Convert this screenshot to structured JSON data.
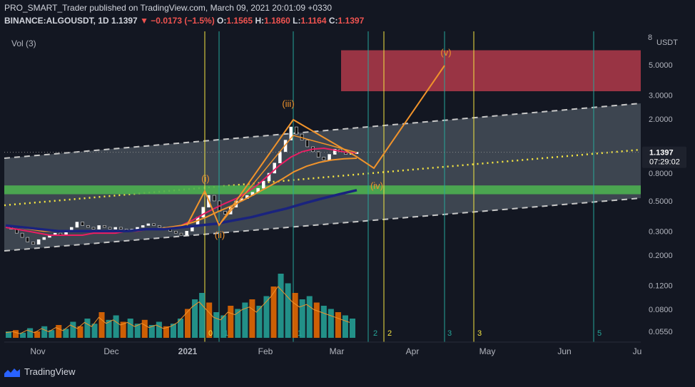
{
  "header": {
    "published_line": "PRO_SMART_Trader published on TradingView.com, March 09, 2021 20:01:09 +0330",
    "symbol_label": "BINANCE:ALGOUSDT, 1D",
    "last_price": "1.1397",
    "change": "−0.0173 (−1.5%)",
    "open_label": "O:",
    "open": "1.1565",
    "high_label": "H:",
    "high": "1.1860",
    "low_label": "L:",
    "low": "1.1164",
    "close_label": "C:",
    "close": "1.1397"
  },
  "indicator_label": "Vol (3)",
  "footer": {
    "brand": "TradingView"
  },
  "colors": {
    "background": "#131722",
    "channel_fill": "#4c5560",
    "green_zone": "#4caf50",
    "red_zone": "#b2394a",
    "wave_orange": "#f0932b",
    "vline_green": "#26a69a",
    "vline_yellow": "#f5e642",
    "price_label_bg": "#1e222d"
  },
  "chart_data": {
    "type": "line",
    "axis_unit": "USDT",
    "y_scale": "log",
    "price_ticks": [
      "5.0000",
      "3.0000",
      "2.0000",
      "0.8000",
      "0.5000",
      "0.3000",
      "0.2000",
      "0.1200",
      "0.0800",
      "0.0550"
    ],
    "price_tick_values": [
      5.0,
      3.0,
      2.0,
      0.8,
      0.5,
      0.3,
      0.2,
      0.12,
      0.08,
      0.055
    ],
    "partial_top_tick": "8",
    "last_price_label": "1.1397",
    "countdown_label": "07:29:02",
    "x_labels": [
      "Nov",
      "Dec",
      "2021",
      "Feb",
      "Mar",
      "Apr",
      "May",
      "Jun",
      "Ju"
    ],
    "wave_labels": [
      "(i)",
      "(ii)",
      "(iii)",
      "(iv)",
      "(v)"
    ],
    "cycle_labels": [
      {
        "text": "0",
        "color": "yellow"
      },
      {
        "text": "1",
        "color": "green"
      },
      {
        "text": "1",
        "color": "green"
      },
      {
        "text": "2",
        "color": "green"
      },
      {
        "text": "2",
        "color": "yellow"
      },
      {
        "text": "3",
        "color": "green"
      },
      {
        "text": "3",
        "color": "yellow"
      },
      {
        "text": "5",
        "color": "green"
      }
    ],
    "price_path": [
      0.33,
      0.31,
      0.29,
      0.27,
      0.25,
      0.24,
      0.26,
      0.27,
      0.28,
      0.29,
      0.28,
      0.3,
      0.32,
      0.35,
      0.33,
      0.32,
      0.31,
      0.33,
      0.32,
      0.31,
      0.32,
      0.31,
      0.3,
      0.31,
      0.32,
      0.33,
      0.34,
      0.33,
      0.32,
      0.31,
      0.3,
      0.29,
      0.28,
      0.3,
      0.33,
      0.38,
      0.45,
      0.55,
      0.5,
      0.42,
      0.4,
      0.45,
      0.5,
      0.52,
      0.55,
      0.58,
      0.62,
      0.7,
      0.8,
      0.95,
      1.15,
      1.4,
      1.75,
      1.55,
      1.4,
      1.25,
      1.15,
      1.05,
      1.0,
      1.1,
      1.2,
      1.15,
      1.1,
      1.13,
      1.14
    ],
    "ema_red": [
      0.32,
      0.31,
      0.3,
      0.29,
      0.28,
      0.28,
      0.28,
      0.28,
      0.29,
      0.29,
      0.29,
      0.3,
      0.3,
      0.31,
      0.31,
      0.32,
      0.33,
      0.36,
      0.4,
      0.44,
      0.48,
      0.52,
      0.58,
      0.66,
      0.78,
      0.92,
      1.05,
      1.15,
      1.2,
      1.22,
      1.18,
      1.14,
      1.13
    ],
    "ema_orange": [
      0.33,
      0.32,
      0.31,
      0.3,
      0.3,
      0.3,
      0.3,
      0.3,
      0.3,
      0.3,
      0.3,
      0.31,
      0.31,
      0.32,
      0.33,
      0.35,
      0.38,
      0.42,
      0.46,
      0.51,
      0.57,
      0.64,
      0.72,
      0.82,
      0.9,
      0.96,
      1.0,
      1.02,
      1.03
    ],
    "sma_blue": [
      0.33,
      0.32,
      0.31,
      0.3,
      0.3,
      0.3,
      0.3,
      0.3,
      0.31,
      0.31,
      0.32,
      0.33,
      0.34,
      0.36,
      0.38,
      0.41,
      0.44,
      0.48,
      0.52,
      0.56,
      0.6
    ],
    "zones": [
      {
        "name": "resistance",
        "low": 3.2,
        "high": 6.4
      },
      {
        "name": "support",
        "low": 0.56,
        "high": 0.65
      }
    ],
    "volume": [
      0.1,
      0.12,
      0.08,
      0.15,
      0.1,
      0.18,
      0.12,
      0.2,
      0.14,
      0.25,
      0.18,
      0.3,
      0.22,
      0.4,
      0.28,
      0.35,
      0.25,
      0.3,
      0.22,
      0.28,
      0.2,
      0.25,
      0.18,
      0.22,
      0.3,
      0.45,
      0.6,
      0.7,
      0.55,
      0.4,
      0.35,
      0.5,
      0.45,
      0.55,
      0.6,
      0.5,
      0.65,
      0.8,
      1.0,
      0.85,
      0.7,
      0.6,
      0.65,
      0.55,
      0.5,
      0.45,
      0.4,
      0.35,
      0.3
    ]
  }
}
